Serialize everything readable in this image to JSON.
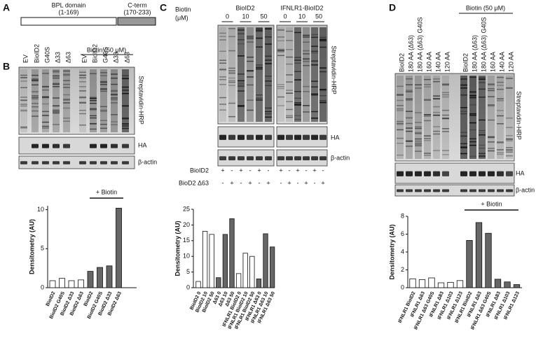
{
  "panels": {
    "A": {
      "label": "A",
      "domains": [
        {
          "name": "BPL domain",
          "range": "(1-169)"
        },
        {
          "name": "C-term",
          "range": "(170-233)"
        }
      ]
    },
    "B": {
      "label": "B",
      "lanes": [
        "EV",
        "BioID2",
        "G40S",
        "Δ33",
        "Δ63",
        "EV",
        "BioID2",
        "G40S",
        "Δ33",
        "Δ63"
      ],
      "treatment": "Biotin (50 μM)",
      "blots": [
        "Streptavidin-HRP",
        "HA",
        "β-actin"
      ]
    },
    "C": {
      "label": "C",
      "treatment": [
        "Biotin",
        "(μM)"
      ],
      "groups": [
        "BioID2",
        "IFNLR1-BioID2"
      ],
      "lanes": [
        "0",
        "10",
        "50",
        "0",
        "10",
        "50"
      ],
      "blots": [
        "Streptavidin-HRP",
        "HA",
        "β-actin"
      ],
      "rows": [
        {
          "label": "BioID2",
          "signs": [
            "+",
            "-",
            "+",
            "-",
            "+",
            "-",
            "+",
            "-",
            "+",
            "-",
            "+",
            "-"
          ]
        },
        {
          "label": "BioD2 Δ63",
          "signs": [
            "-",
            "+",
            "-",
            "+",
            "-",
            "+",
            "-",
            "+",
            "-",
            "+",
            "-",
            "+"
          ]
        }
      ]
    },
    "D": {
      "label": "D",
      "lanes": [
        "BioID2",
        "180 AA (Δ63)",
        "180 AA (Δ63) G40S",
        "160 AA",
        "140 AA",
        "120 AA",
        "BioID2",
        "180 AA (Δ63)",
        "180 AA (Δ63) G40S",
        "160 AA",
        "140 AA",
        "120 AA"
      ],
      "treatment": "Biotin (50 μM)",
      "blots": [
        "Streptavidin-HRP",
        "HA",
        "β-actin"
      ]
    }
  },
  "chart_data": [
    {
      "type": "bar",
      "ylabel": "Densitometry (AU)",
      "annotation": "+ Biotin",
      "categories": [
        "BioID2",
        "BioID2 G40S",
        "BioID2 Δ33",
        "BioID2 Δ63",
        "BioID2",
        "BioID2 G40S",
        "BioID2 Δ33",
        "BioID2 Δ63"
      ],
      "values": [
        0.9,
        1.2,
        0.9,
        1.0,
        2.1,
        2.6,
        2.8,
        10.2
      ],
      "colors": [
        "#ffffff",
        "#ffffff",
        "#ffffff",
        "#ffffff",
        "#666666",
        "#666666",
        "#666666",
        "#666666"
      ],
      "ylim": [
        0,
        10.5
      ],
      "yticks": [
        0,
        5,
        10
      ]
    },
    {
      "type": "bar",
      "ylabel": "Densitometry (AU)",
      "categories": [
        "BioID2 0",
        "BioID2 10",
        "BioID2 50",
        "Δ63 0",
        "Δ63 10",
        "Δ63 50",
        "IFNLR1 BioID2 0",
        "IFNLR1 BioID2 10",
        "IFNLR1 BioID2 50",
        "IFNLR1 Δ63 0",
        "IFNLR1 Δ63 10",
        "IFNLR1 Δ63 50"
      ],
      "values": [
        2,
        18,
        17,
        3.2,
        17,
        22,
        4.5,
        11,
        10,
        2.8,
        17.2,
        13
      ],
      "colors": [
        "#ffffff",
        "#ffffff",
        "#ffffff",
        "#666666",
        "#666666",
        "#666666",
        "#ffffff",
        "#ffffff",
        "#ffffff",
        "#666666",
        "#666666",
        "#666666"
      ],
      "ylim": [
        0,
        25
      ],
      "yticks": [
        0,
        5,
        10,
        15,
        20,
        25
      ]
    },
    {
      "type": "bar",
      "ylabel": "Densitometry (AU)",
      "annotation": "+ Biotin",
      "categories": [
        "IFNLR1 BioID2",
        "IFNLR1 Δ63",
        "IFNLR1 Δ63 G40S",
        "IFNLR1 Δ83",
        "IFNLR1 Δ103",
        "IFNLR1 Δ123",
        "IFNLR1 BioID2",
        "IFNLR1 Δ63",
        "IFNLR1 Δ63 G40S",
        "IFNLR1 Δ83",
        "IFNLR1 Δ103",
        "IFNLR1 Δ123"
      ],
      "values": [
        1.0,
        0.9,
        1.1,
        0.55,
        0.6,
        0.8,
        5.3,
        7.3,
        6.1,
        0.95,
        0.65,
        0.35
      ],
      "colors": [
        "#ffffff",
        "#ffffff",
        "#ffffff",
        "#ffffff",
        "#ffffff",
        "#ffffff",
        "#666666",
        "#666666",
        "#666666",
        "#666666",
        "#666666",
        "#666666"
      ],
      "ylim": [
        0,
        8
      ],
      "yticks": [
        0,
        2,
        4,
        6,
        8
      ]
    }
  ]
}
